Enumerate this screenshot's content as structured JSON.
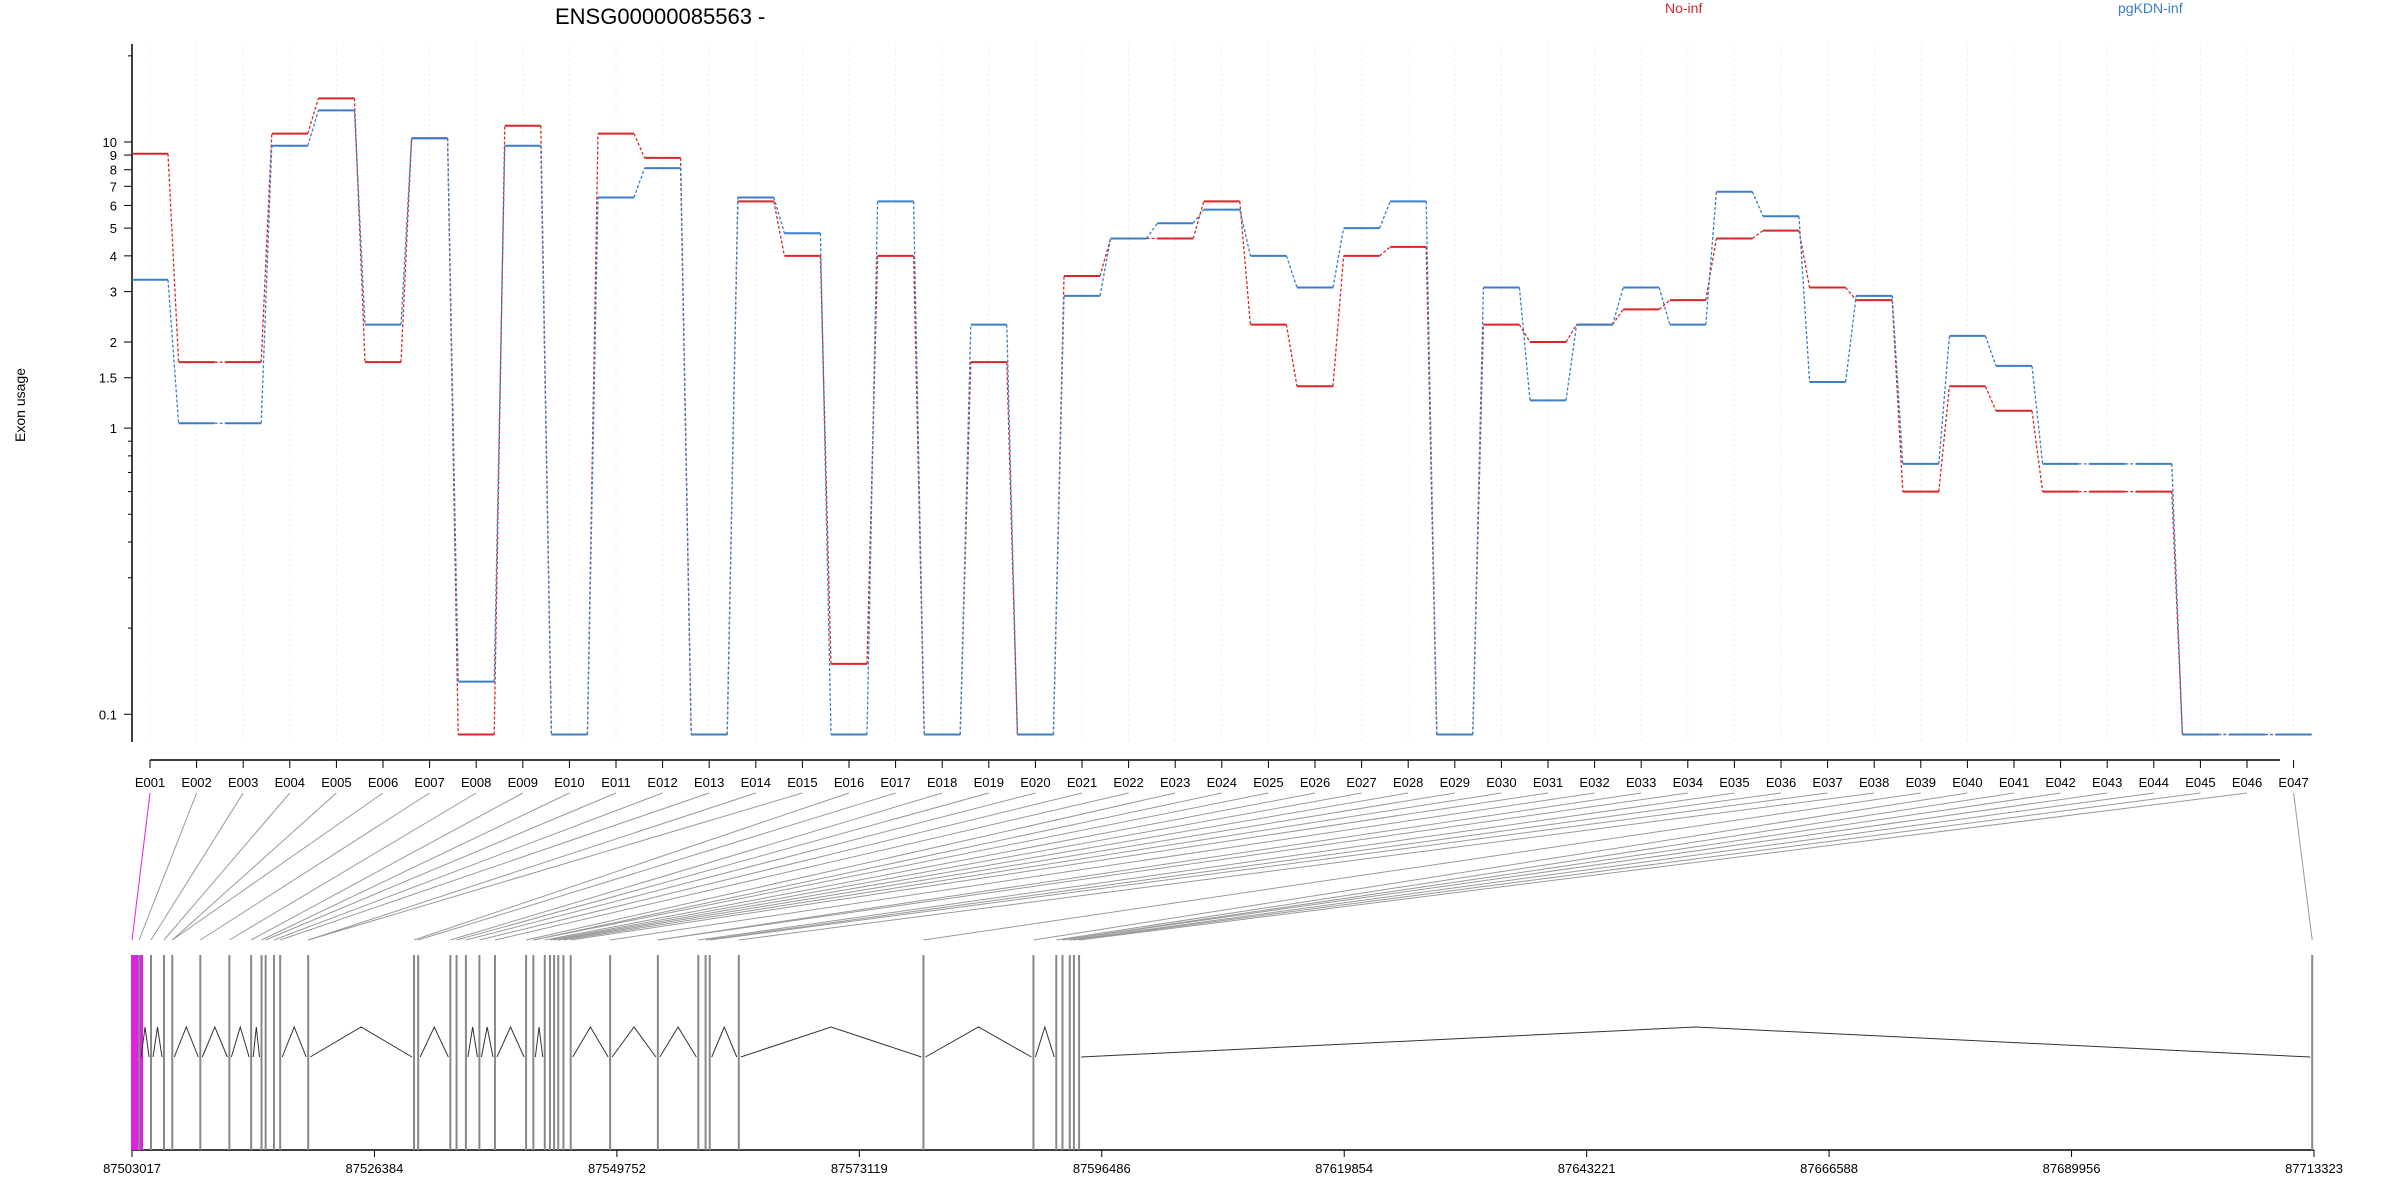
{
  "chart_data": {
    "type": "line",
    "title": "ENSG00000085563 -",
    "ylabel": "Exon usage",
    "y_scale": "log",
    "ylim": [
      0.08,
      22
    ],
    "y_ticks": [
      {
        "value": 0.1,
        "label": "0.1"
      },
      {
        "value": 1,
        "label": "1"
      },
      {
        "value": 1.5,
        "label": "1.5"
      },
      {
        "value": 2,
        "label": "2"
      },
      {
        "value": 3,
        "label": "3"
      },
      {
        "value": 4,
        "label": "4"
      },
      {
        "value": 5,
        "label": "5"
      },
      {
        "value": 6,
        "label": "6"
      },
      {
        "value": 7,
        "label": "7"
      },
      {
        "value": 8,
        "label": "8"
      },
      {
        "value": 9,
        "label": "9"
      },
      {
        "value": 10,
        "label": "10"
      }
    ],
    "grid": true,
    "legend_position": "top",
    "categories": [
      "E001",
      "E002",
      "E003",
      "E004",
      "E005",
      "E006",
      "E007",
      "E008",
      "E009",
      "E010",
      "E011",
      "E012",
      "E013",
      "E014",
      "E015",
      "E016",
      "E017",
      "E018",
      "E019",
      "E020",
      "E021",
      "E022",
      "E023",
      "E024",
      "E025",
      "E026",
      "E027",
      "E028",
      "E029",
      "E030",
      "E031",
      "E032",
      "E033",
      "E034",
      "E035",
      "E036",
      "E037",
      "E038",
      "E039",
      "E040",
      "E041",
      "E042",
      "E043",
      "E044",
      "E045",
      "E046",
      "E047"
    ],
    "series": [
      {
        "name": "No-inf",
        "color": "#d62728",
        "values": [
          9.1,
          1.7,
          1.7,
          10.7,
          14.2,
          1.7,
          10.3,
          0.085,
          11.4,
          0.085,
          10.7,
          8.8,
          0.085,
          6.2,
          4.0,
          0.15,
          4.0,
          0.085,
          1.7,
          0.085,
          3.4,
          4.6,
          4.6,
          6.2,
          2.3,
          1.4,
          4.0,
          4.3,
          0.085,
          2.3,
          2.0,
          2.3,
          2.6,
          2.8,
          4.6,
          4.9,
          3.1,
          2.8,
          0.6,
          1.4,
          1.15,
          0.6,
          0.6,
          0.6,
          0.085,
          0.085,
          0.085
        ]
      },
      {
        "name": "pgKDN-inf",
        "color": "#3a7dc9",
        "values": [
          3.3,
          1.04,
          1.04,
          9.7,
          12.9,
          2.3,
          10.3,
          0.13,
          9.7,
          0.085,
          6.4,
          8.1,
          0.085,
          6.4,
          4.8,
          0.085,
          6.2,
          0.085,
          2.3,
          0.085,
          2.9,
          4.6,
          5.2,
          5.8,
          4.0,
          3.1,
          5.0,
          6.2,
          0.085,
          3.1,
          1.25,
          2.3,
          3.1,
          2.3,
          6.7,
          5.5,
          1.45,
          2.9,
          0.75,
          2.1,
          1.65,
          0.75,
          0.75,
          0.75,
          0.085,
          0.085,
          0.085
        ]
      }
    ],
    "gene_model": {
      "x_ticks": [
        "87503017",
        "87526384",
        "87549752",
        "87573119",
        "87596486",
        "87619854",
        "87643221",
        "87666588",
        "87689956",
        "87713323"
      ],
      "range": [
        87503017,
        87713323
      ],
      "exon_color": "#888888",
      "highlight_color": "#e020e0",
      "exon_starts": [
        87503020,
        87503700,
        87504850,
        87506100,
        87506900,
        87509600,
        87512400,
        87514500,
        87515500,
        87515900,
        87516700,
        87517300,
        87520000,
        87530200,
        87530600,
        87533700,
        87534300,
        87535200,
        87536500,
        87538000,
        87541000,
        87541700,
        87542800,
        87543300,
        87543700,
        87544100,
        87544600,
        87545300,
        87549100,
        87553700,
        87557600,
        87558300,
        87558700,
        87561500,
        87579300,
        87589900,
        87592100,
        87592700,
        87593400,
        87593800,
        87594300,
        87713150
      ]
    }
  }
}
